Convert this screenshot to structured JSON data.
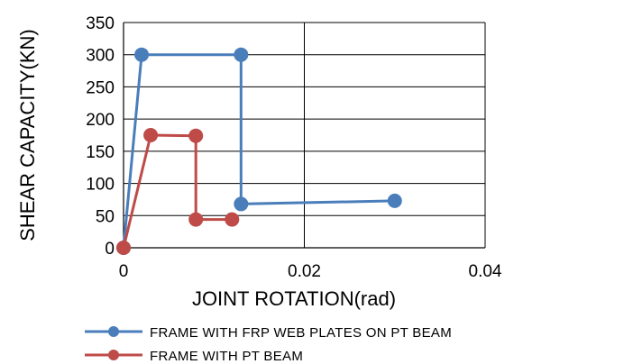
{
  "chart_data": {
    "type": "line",
    "xlabel": "JOINT ROTATION(rad)",
    "ylabel": "SHEAR CAPACITY(KN)",
    "xlim": [
      0,
      0.04
    ],
    "ylim": [
      0,
      350
    ],
    "x_ticks": [
      0,
      0.02,
      0.04
    ],
    "x_tick_labels": [
      "0",
      "0.02",
      "0.04"
    ],
    "y_ticks": [
      0,
      50,
      100,
      150,
      200,
      250,
      300,
      350
    ],
    "y_tick_labels": [
      "0",
      "50",
      "100",
      "150",
      "200",
      "250",
      "300",
      "350"
    ],
    "grid": true,
    "legend_position": "bottom",
    "series": [
      {
        "name": "FRAME WITH FRP WEB PLATES ON PT BEAM",
        "color": "#4A7EBB",
        "points": [
          [
            0,
            0
          ],
          [
            0.002,
            300
          ],
          [
            0.013,
            300
          ],
          [
            0.013,
            68
          ],
          [
            0.03,
            73
          ]
        ]
      },
      {
        "name": "FRAME WITH PT BEAM",
        "color": "#BE4B48",
        "points": [
          [
            0,
            0
          ],
          [
            0.003,
            175
          ],
          [
            0.008,
            174
          ],
          [
            0.008,
            44
          ],
          [
            0.012,
            44
          ]
        ]
      }
    ]
  }
}
